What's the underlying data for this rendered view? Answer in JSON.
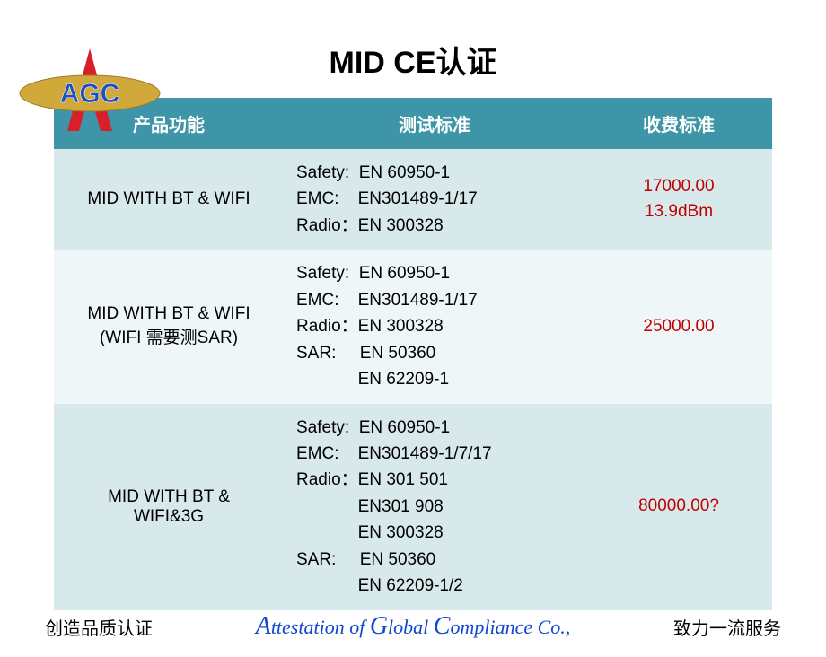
{
  "title": "MID  CE认证",
  "colors": {
    "header_bg": "#3e95a7",
    "row_odd": "#d8e9ec",
    "row_even": "#eff6f7",
    "fee_text": "#c00000",
    "footer_link": "#1046d0",
    "logo_red": "#d91f2a",
    "logo_gold": "#d1a93a",
    "logo_text": "#1a4fc4"
  },
  "fonts": {
    "title_size": 34,
    "header_size": 20,
    "cell_size": 19,
    "footer_size": 20
  },
  "table": {
    "headers": [
      "产品功能",
      "测试标准",
      "收费标准"
    ],
    "rows": [
      {
        "func": "MID WITH BT & WIFI",
        "std": "Safety:  EN 60950-1\nEMC:    EN301489-1/17\nRadio：EN 300328",
        "fee": "17000.00\n13.9dBm"
      },
      {
        "func": "MID WITH BT & WIFI\n(WIFI 需要测SAR)",
        "std": "Safety:  EN 60950-1\nEMC:    EN301489-1/17\nRadio：EN 300328\nSAR:     EN 50360\n             EN 62209-1",
        "fee": "25000.00"
      },
      {
        "func": "MID WITH BT &\nWIFI&3G",
        "std": "Safety:  EN 60950-1\nEMC:    EN301489-1/7/17\nRadio：EN 301 501\n             EN301 908\n             EN 300328\nSAR:     EN 50360\n             EN 62209-1/2",
        "fee": "80000.00?"
      }
    ]
  },
  "footer": {
    "left": "创造品质认证",
    "center_parts": [
      "A",
      "ttestation of ",
      "G",
      "lobal  ",
      "C",
      "ompliance  Co.,"
    ],
    "right": "致力一流服务"
  },
  "logo": {
    "text": "AGC"
  }
}
